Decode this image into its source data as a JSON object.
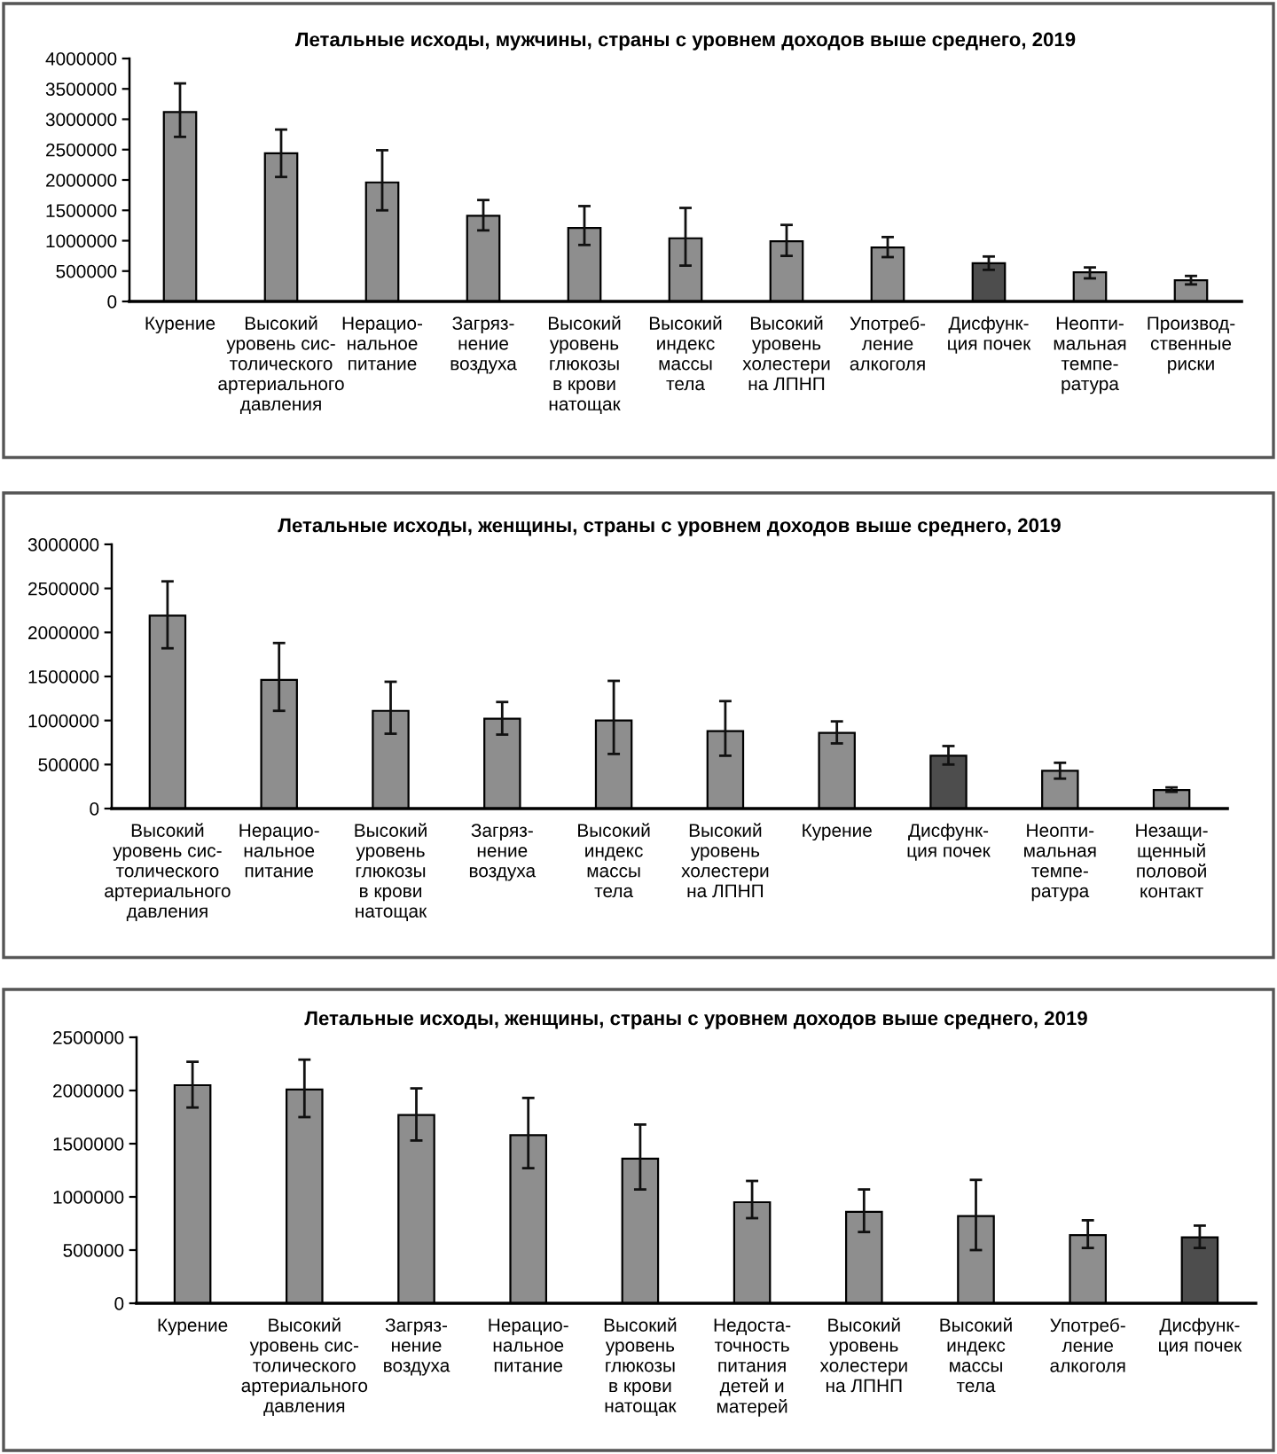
{
  "chart_data": [
    {
      "type": "bar",
      "title": "Летальные исходы, мужчины, страны с уровнем доходов выше среднего, 2019",
      "categories": [
        "Курение",
        "Высокий\nуровень сис-\nтолического\nартериального\nдавления",
        "Нерацио-\nнальное\nпитание",
        "Загряз-\nнение\nвоздуха",
        "Высокий\nуровень\nглюкозы\nв крови\nнатощак",
        "Высокий\nиндекс\nмассы\nтела",
        "Высокий\nуровень\nхолестери\nна ЛПНП",
        "Употреб-\nление\nалкоголя",
        "Дисфунк-\nция почек",
        "Неопти-\nмальная\nтемпе-\nратура",
        "Производ-\nственные\nриски"
      ],
      "values": [
        3120000,
        2440000,
        1960000,
        1410000,
        1210000,
        1040000,
        990000,
        890000,
        630000,
        480000,
        350000
      ],
      "errors": [
        [
          2710000,
          3590000
        ],
        [
          2050000,
          2830000
        ],
        [
          1500000,
          2490000
        ],
        [
          1170000,
          1670000
        ],
        [
          930000,
          1570000
        ],
        [
          590000,
          1540000
        ],
        [
          750000,
          1260000
        ],
        [
          730000,
          1060000
        ],
        [
          520000,
          740000
        ],
        [
          380000,
          560000
        ],
        [
          280000,
          420000
        ]
      ],
      "colors": [
        "#8e8e8e",
        "#8e8e8e",
        "#8e8e8e",
        "#8e8e8e",
        "#8e8e8e",
        "#8e8e8e",
        "#8e8e8e",
        "#8e8e8e",
        "#4d4d4d",
        "#8e8e8e",
        "#8e8e8e"
      ],
      "ylim": [
        0,
        4000000
      ],
      "yticks": [
        0,
        500000,
        1000000,
        1500000,
        2000000,
        2500000,
        3000000,
        3500000,
        4000000
      ]
    },
    {
      "type": "bar",
      "title": "Летальные исходы, женщины, страны с уровнем доходов выше среднего, 2019",
      "categories": [
        "Высокий\nуровень сис-\nтолического\nартериального\nдавления",
        "Нерацио-\nнальное\nпитание",
        "Высокий\nуровень\nглюкозы\nв крови\nнатощак",
        "Загряз-\nнение\nвоздуха",
        "Высокий\nиндекс\nмассы\nтела",
        "Высокий\nуровень\nхолестери\nна ЛПНП",
        "Курение",
        "Дисфунк-\nция почек",
        "Неопти-\nмальная\nтемпе-\nратура",
        "Незащи-\nщенный\nполовой\nконтакт"
      ],
      "values": [
        2190000,
        1460000,
        1110000,
        1020000,
        1000000,
        880000,
        860000,
        600000,
        430000,
        210000
      ],
      "errors": [
        [
          1820000,
          2580000
        ],
        [
          1110000,
          1880000
        ],
        [
          850000,
          1440000
        ],
        [
          840000,
          1210000
        ],
        [
          620000,
          1450000
        ],
        [
          600000,
          1220000
        ],
        [
          740000,
          990000
        ],
        [
          500000,
          710000
        ],
        [
          340000,
          520000
        ],
        [
          190000,
          240000
        ]
      ],
      "colors": [
        "#8e8e8e",
        "#8e8e8e",
        "#8e8e8e",
        "#8e8e8e",
        "#8e8e8e",
        "#8e8e8e",
        "#8e8e8e",
        "#4d4d4d",
        "#8e8e8e",
        "#8e8e8e"
      ],
      "ylim": [
        0,
        3000000
      ],
      "yticks": [
        0,
        500000,
        1000000,
        1500000,
        2000000,
        2500000,
        3000000
      ]
    },
    {
      "type": "bar",
      "title": "Летальные исходы, женщины, страны с уровнем доходов выше среднего, 2019",
      "categories": [
        "Курение",
        "Высокий\nуровень сис-\nтолического\nартериального\nдавления",
        "Загряз-\nнение\nвоздуха",
        "Нерацио-\nнальное\nпитание",
        "Высокий\nуровень\nглюкозы\nв крови\nнатощак",
        "Недоста-\nточность\nпитания\nдетей и\nматерей",
        "Высокий\nуровень\nхолестери\nна ЛПНП",
        "Высокий\nиндекс\nмассы\nтела",
        "Употреб-\nление\nалкоголя",
        "Дисфунк-\nция почек"
      ],
      "values": [
        2050000,
        2010000,
        1770000,
        1580000,
        1360000,
        950000,
        860000,
        820000,
        640000,
        620000
      ],
      "errors": [
        [
          1840000,
          2270000
        ],
        [
          1750000,
          2290000
        ],
        [
          1530000,
          2020000
        ],
        [
          1270000,
          1930000
        ],
        [
          1070000,
          1680000
        ],
        [
          800000,
          1150000
        ],
        [
          670000,
          1070000
        ],
        [
          500000,
          1160000
        ],
        [
          520000,
          780000
        ],
        [
          520000,
          730000
        ]
      ],
      "colors": [
        "#8e8e8e",
        "#8e8e8e",
        "#8e8e8e",
        "#8e8e8e",
        "#8e8e8e",
        "#8e8e8e",
        "#8e8e8e",
        "#8e8e8e",
        "#8e8e8e",
        "#4d4d4d"
      ],
      "ylim": [
        0,
        2500000
      ],
      "yticks": [
        0,
        500000,
        1000000,
        1500000,
        2000000,
        2500000
      ]
    }
  ]
}
